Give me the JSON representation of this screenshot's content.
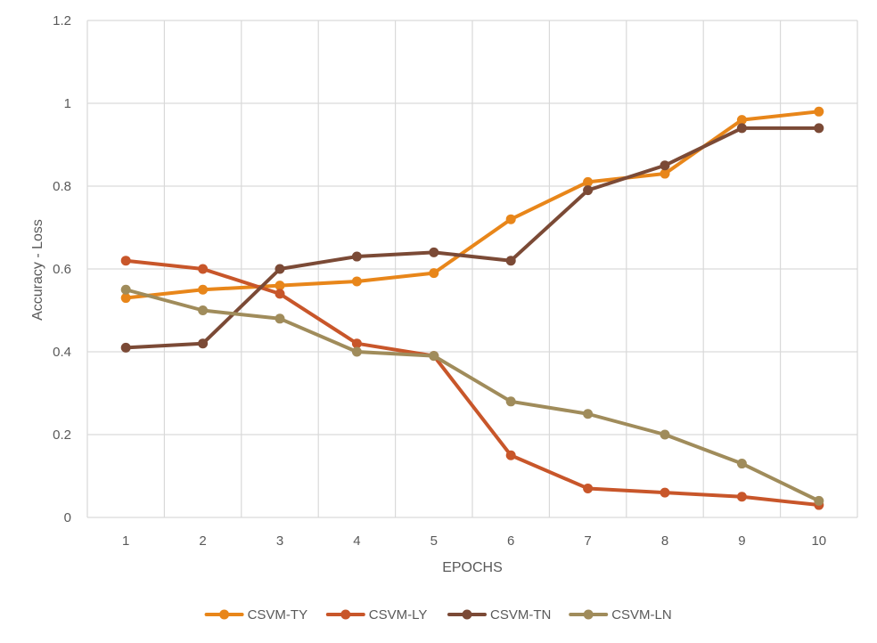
{
  "chart_data": {
    "type": "line",
    "title": "",
    "xlabel": "EPOCHS",
    "ylabel": "Accuracy - Loss",
    "categories": [
      "1",
      "2",
      "3",
      "4",
      "5",
      "6",
      "7",
      "8",
      "9",
      "10"
    ],
    "ylim": [
      0,
      1.2
    ],
    "yticks": [
      0,
      0.2,
      0.4,
      0.6,
      0.8,
      1,
      1.2
    ],
    "ytick_labels": [
      "0",
      "0.2",
      "0.4",
      "0.6",
      "0.8",
      "1",
      "1.2"
    ],
    "grid": true,
    "legend_position": "bottom",
    "series": [
      {
        "name": "CSVM-TY",
        "color": "#E8861A",
        "values": [
          0.53,
          0.55,
          0.56,
          0.57,
          0.59,
          0.72,
          0.81,
          0.83,
          0.96,
          0.98
        ]
      },
      {
        "name": "CSVM-LY",
        "color": "#C8562A",
        "values": [
          0.62,
          0.6,
          0.54,
          0.42,
          0.39,
          0.15,
          0.07,
          0.06,
          0.05,
          0.03
        ]
      },
      {
        "name": "CSVM-TN",
        "color": "#7B4A36",
        "values": [
          0.41,
          0.42,
          0.6,
          0.63,
          0.64,
          0.62,
          0.79,
          0.85,
          0.94,
          0.94
        ]
      },
      {
        "name": "CSVM-LN",
        "color": "#A08C5B",
        "values": [
          0.55,
          0.5,
          0.48,
          0.4,
          0.39,
          0.28,
          0.25,
          0.2,
          0.13,
          0.04
        ]
      }
    ]
  }
}
